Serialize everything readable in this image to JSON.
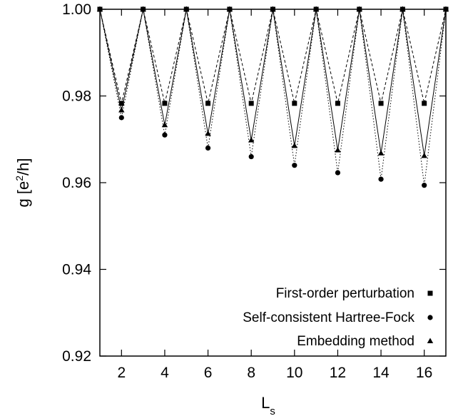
{
  "chart_data": {
    "type": "line",
    "xlabel_main": "L",
    "xlabel_sub": "s",
    "ylabel": "g [e",
    "ylabel_sup": "2",
    "ylabel_end": "/h]",
    "xlim": [
      1,
      17
    ],
    "ylim": [
      0.92,
      1.0
    ],
    "xticks": [
      2,
      4,
      6,
      8,
      10,
      12,
      14,
      16
    ],
    "yticks": [
      "0.92",
      "0.94",
      "0.96",
      "0.98",
      "1.00"
    ],
    "legend_position": "bottom-right",
    "series": [
      {
        "name": "First-order perturbation",
        "marker": "square",
        "line": "dashed",
        "x": [
          1,
          2,
          3,
          4,
          5,
          6,
          7,
          8,
          9,
          10,
          11,
          12,
          13,
          14,
          15,
          16,
          17
        ],
        "y": [
          1.0,
          0.9783,
          1.0,
          0.9783,
          1.0,
          0.9783,
          1.0,
          0.9783,
          1.0,
          0.9783,
          1.0,
          0.9783,
          1.0,
          0.9783,
          1.0,
          0.9783,
          1.0
        ]
      },
      {
        "name": "Self-consistent Hartree-Fock",
        "marker": "circle",
        "line": "dotted",
        "x": [
          1,
          2,
          3,
          4,
          5,
          6,
          7,
          8,
          9,
          10,
          11,
          12,
          13,
          14,
          15,
          16,
          17
        ],
        "y": [
          1.0,
          0.975,
          1.0,
          0.971,
          1.0,
          0.968,
          1.0,
          0.966,
          1.0,
          0.964,
          1.0,
          0.9623,
          1.0,
          0.9608,
          1.0,
          0.9594,
          1.0
        ]
      },
      {
        "name": "Embedding method",
        "marker": "triangle",
        "line": "solid",
        "x": [
          1,
          2,
          3,
          4,
          5,
          6,
          7,
          8,
          9,
          10,
          11,
          12,
          13,
          14,
          15,
          16,
          17
        ],
        "y": [
          1.0,
          0.9767,
          1.0,
          0.9733,
          1.0,
          0.9713,
          1.0,
          0.9698,
          1.0,
          0.9685,
          1.0,
          0.9675,
          1.0,
          0.9668,
          1.0,
          0.9662,
          1.0
        ]
      }
    ]
  }
}
